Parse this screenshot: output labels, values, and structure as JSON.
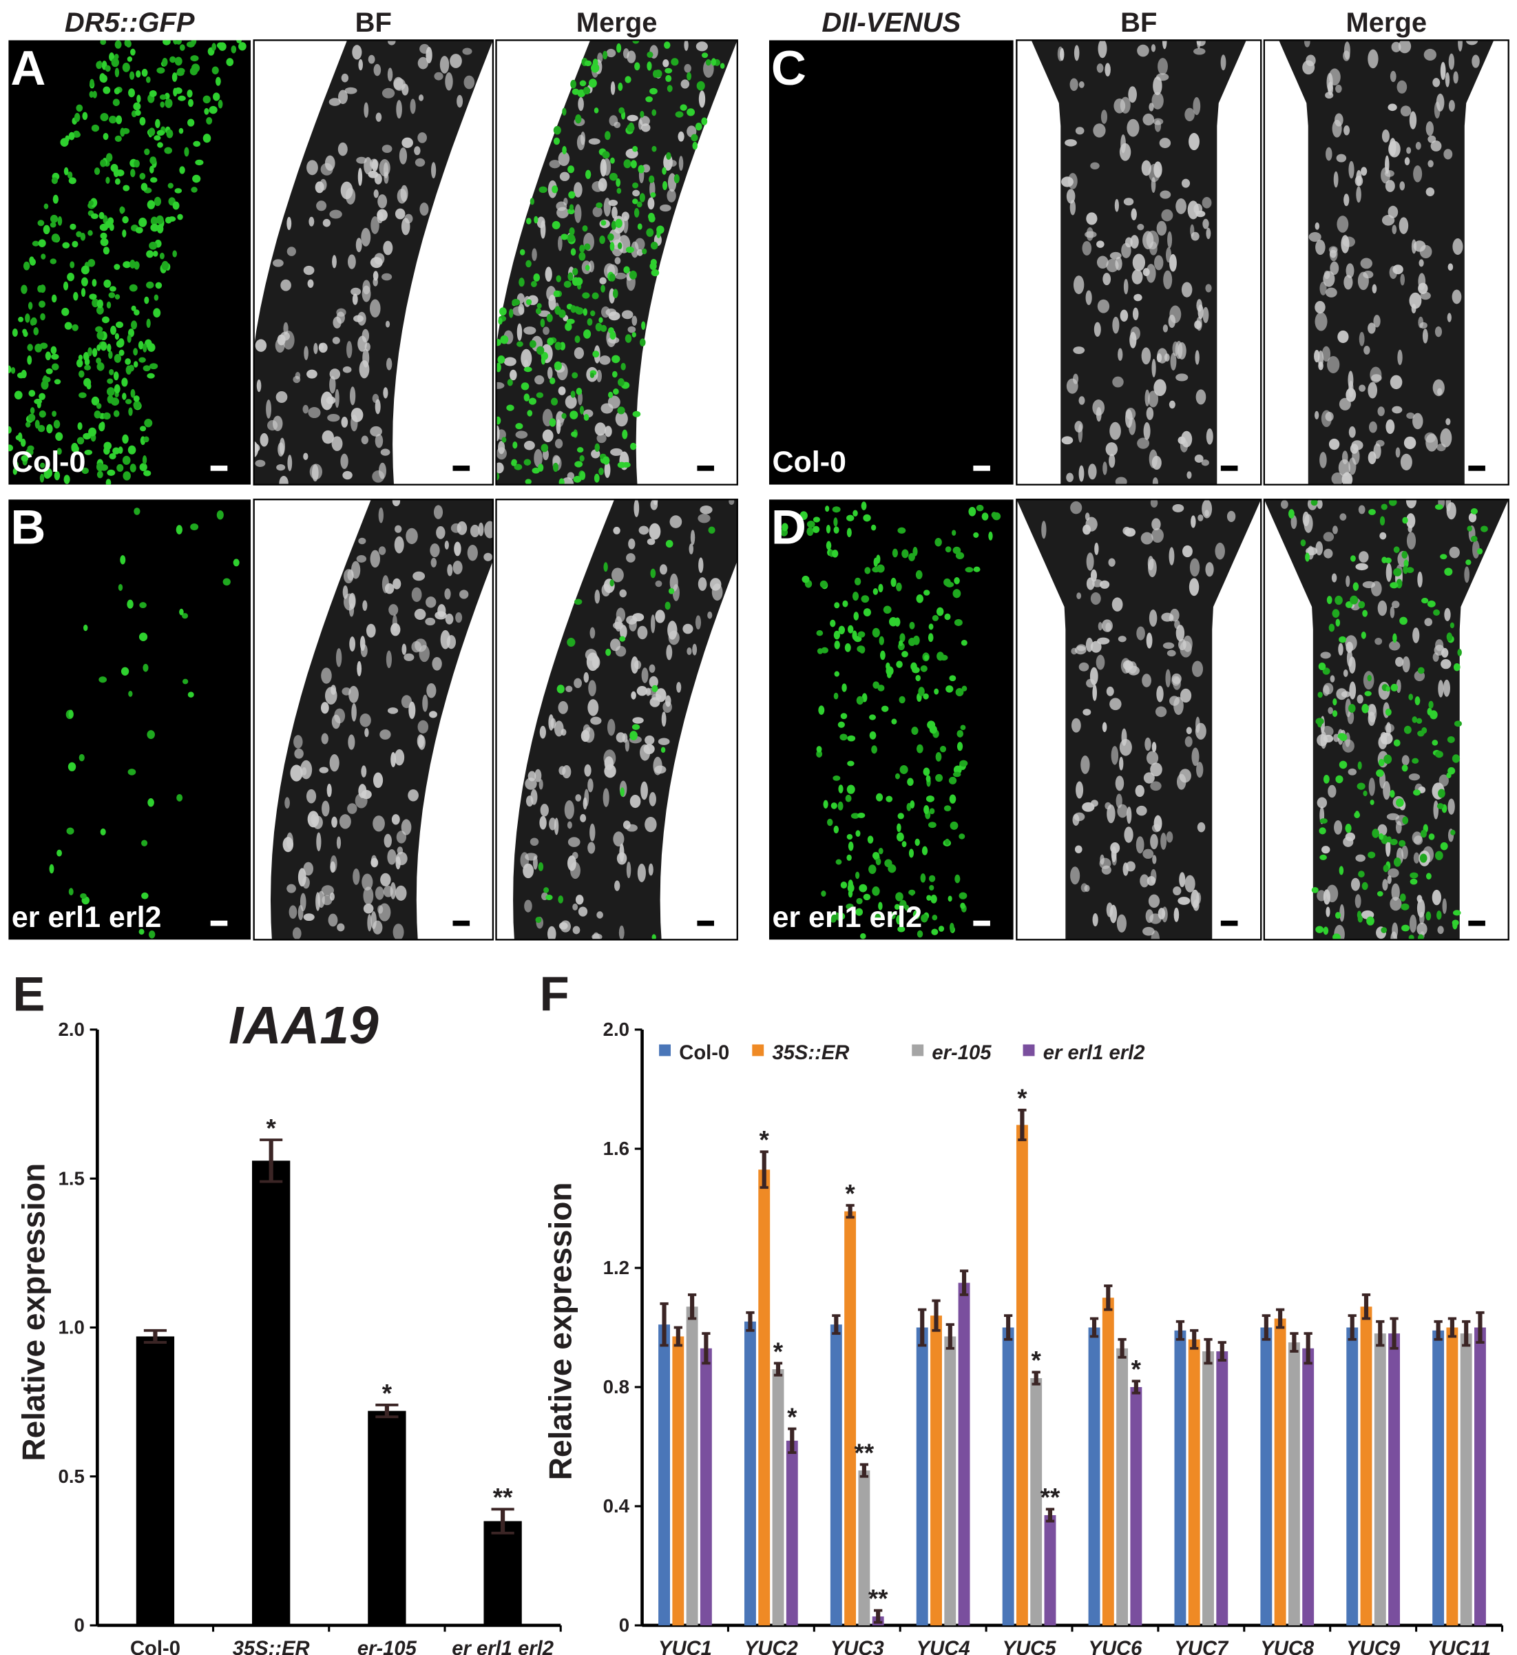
{
  "panels": {
    "letters": [
      "A",
      "B",
      "C",
      "D",
      "E",
      "F"
    ],
    "headers": [
      "DR5::GFP",
      "BF",
      "Merge",
      "DII-VENUS",
      "BF",
      "Merge"
    ],
    "genotypes": [
      "Col-0",
      "er erl1 erl2",
      "Col-0",
      "er erl1 erl2"
    ]
  },
  "chart_data": [
    {
      "type": "bar",
      "title": "IAA19",
      "y_label": "Relative expression",
      "categories": [
        "Col-0",
        "35S::ER",
        "er-105",
        "er erl1 erl2"
      ],
      "values": [
        0.97,
        1.56,
        0.72,
        0.35
      ],
      "errors": [
        0.02,
        0.07,
        0.02,
        0.04
      ],
      "significance": [
        null,
        "*",
        "*",
        "**"
      ],
      "color": "#000000",
      "ylim": [
        0,
        2
      ],
      "yticks": [
        0,
        0.5,
        {
          "value": 1,
          "label": "1.0"
        },
        1.5,
        {
          "value": 2,
          "label": "2.0"
        }
      ]
    },
    {
      "type": "bar",
      "y_label": "Relative expression",
      "categories": [
        "YUC1",
        "YUC2",
        "YUC3",
        "YUC4",
        "YUC5",
        "YUC6",
        "YUC7",
        "YUC8",
        "YUC9",
        "YUC11"
      ],
      "series": [
        {
          "name": "Col-0",
          "color": "#4a76b8",
          "values": [
            1.01,
            1.02,
            1.01,
            1.0,
            1.0,
            1.0,
            0.99,
            1.0,
            1.0,
            0.99
          ],
          "errors": [
            0.07,
            0.03,
            0.03,
            0.06,
            0.04,
            0.03,
            0.03,
            0.04,
            0.04,
            0.03
          ],
          "significance": [
            null,
            null,
            null,
            null,
            null,
            null,
            null,
            null,
            null,
            null
          ]
        },
        {
          "name": "35S::ER",
          "color": "#ef8a25",
          "values": [
            0.97,
            1.53,
            1.39,
            1.04,
            1.68,
            1.1,
            0.96,
            1.03,
            1.07,
            1.0
          ],
          "errors": [
            0.03,
            0.06,
            0.02,
            0.05,
            0.05,
            0.04,
            0.03,
            0.03,
            0.04,
            0.03
          ],
          "significance": [
            null,
            "*",
            "*",
            null,
            "*",
            null,
            null,
            null,
            null,
            null
          ]
        },
        {
          "name": "er-105",
          "color": "#a5a5a5",
          "values": [
            1.07,
            0.86,
            0.52,
            0.97,
            0.83,
            0.93,
            0.92,
            0.95,
            0.98,
            0.98
          ],
          "errors": [
            0.04,
            0.02,
            0.02,
            0.04,
            0.02,
            0.03,
            0.04,
            0.03,
            0.04,
            0.04
          ],
          "significance": [
            null,
            "*",
            "**",
            null,
            "*",
            null,
            null,
            null,
            null,
            null
          ]
        },
        {
          "name": "er erl1 erl2",
          "color": "#7a4f9e",
          "values": [
            0.93,
            0.62,
            0.03,
            1.15,
            0.37,
            0.8,
            0.92,
            0.93,
            0.98,
            1.0
          ],
          "errors": [
            0.05,
            0.04,
            0.02,
            0.04,
            0.02,
            0.02,
            0.03,
            0.05,
            0.05,
            0.05
          ],
          "significance": [
            null,
            "*",
            "**",
            null,
            "**",
            "*",
            null,
            null,
            null,
            null
          ]
        }
      ],
      "ylim": [
        0,
        2
      ],
      "yticks": [
        0,
        0.4,
        0.8,
        1.2,
        1.6,
        {
          "value": 2,
          "label": "2.0"
        }
      ]
    }
  ]
}
